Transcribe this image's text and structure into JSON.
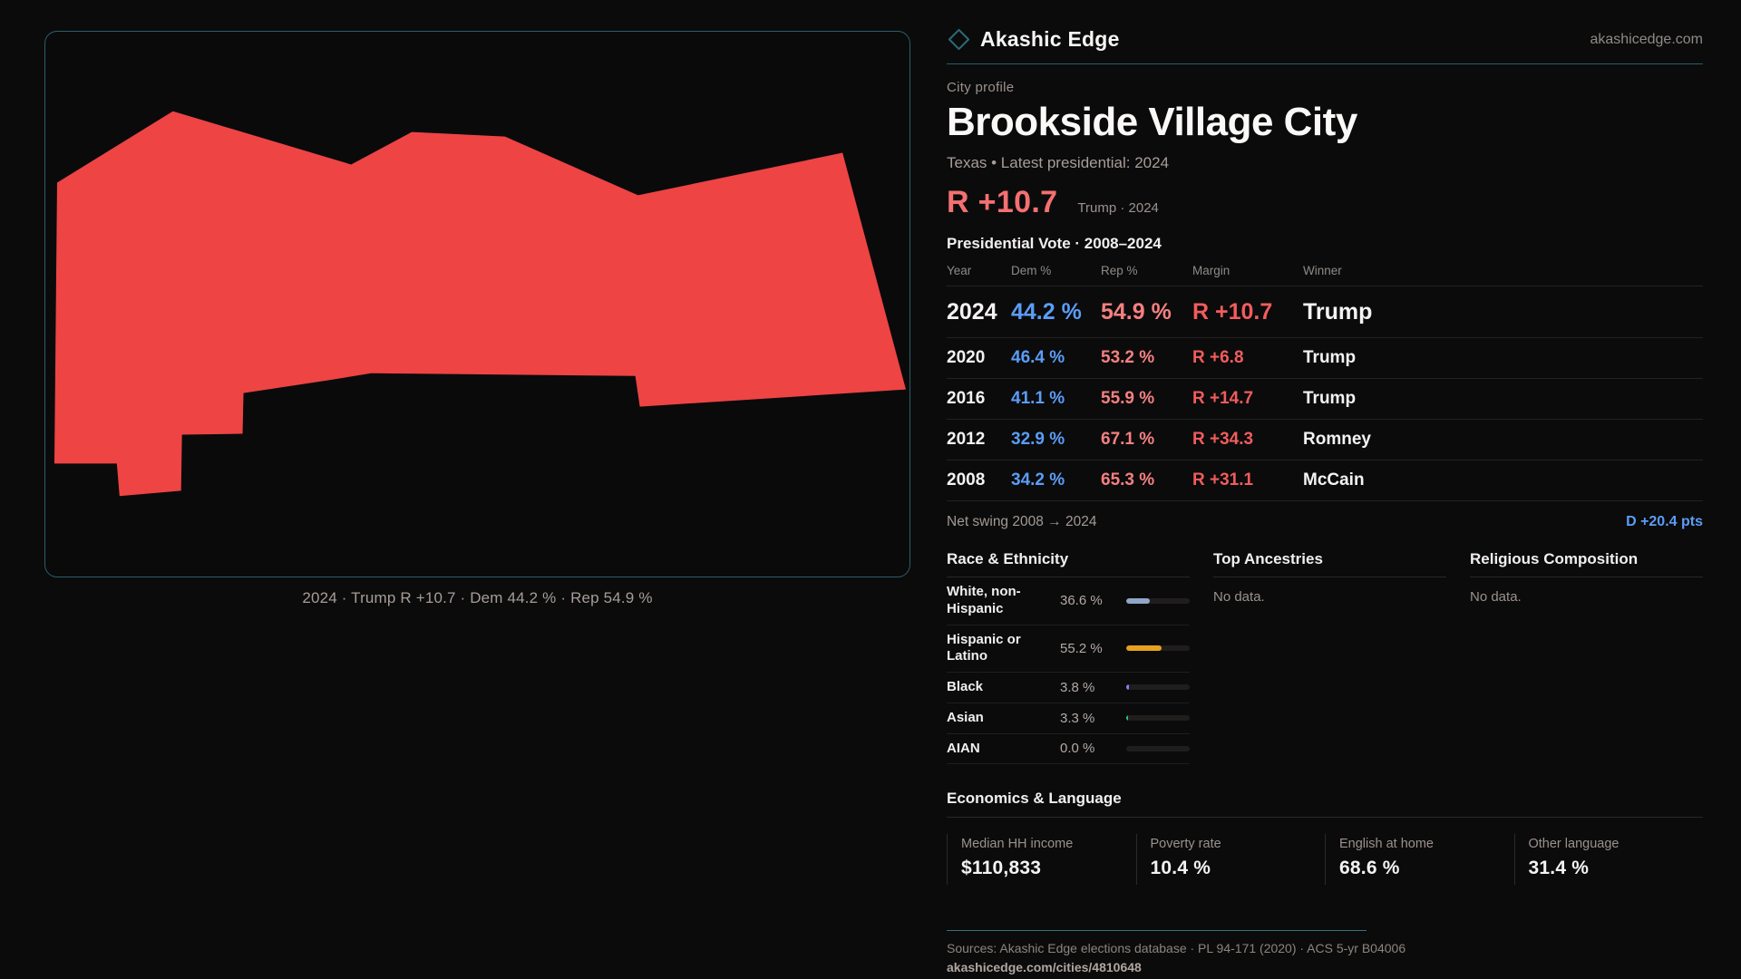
{
  "brand": {
    "name": "Akashic Edge",
    "domain": "akashicedge.com"
  },
  "profile": {
    "kicker": "City profile",
    "title": "Brookside Village City",
    "subtitle": "Texas • Latest presidential: 2024"
  },
  "hero": {
    "margin": "R +10.7",
    "note": "Trump · 2024"
  },
  "table": {
    "title": "Presidential Vote · 2008–2024",
    "headers": [
      "Year",
      "Dem %",
      "Rep %",
      "Margin",
      "Winner"
    ],
    "rows": [
      {
        "year": "2024",
        "dem": "44.2 %",
        "rep": "54.9 %",
        "margin": "R +10.7",
        "winner": "Trump"
      },
      {
        "year": "2020",
        "dem": "46.4 %",
        "rep": "53.2 %",
        "margin": "R +6.8",
        "winner": "Trump"
      },
      {
        "year": "2016",
        "dem": "41.1 %",
        "rep": "55.9 %",
        "margin": "R +14.7",
        "winner": "Trump"
      },
      {
        "year": "2012",
        "dem": "32.9 %",
        "rep": "67.1 %",
        "margin": "R +34.3",
        "winner": "Romney"
      },
      {
        "year": "2008",
        "dem": "34.2 %",
        "rep": "65.3 %",
        "margin": "R +31.1",
        "winner": "McCain"
      }
    ]
  },
  "net_swing": {
    "label": "Net swing 2008 → 2024",
    "value": "D +20.4 pts"
  },
  "race": {
    "title": "Race & Ethnicity",
    "rows": [
      {
        "label": "White, non-Hispanic",
        "value": "36.6 %",
        "pct": 36.6,
        "color": "#8fa7c7"
      },
      {
        "label": "Hispanic or Latino",
        "value": "55.2 %",
        "pct": 55.2,
        "color": "#e6a11f"
      },
      {
        "label": "Black",
        "value": "3.8 %",
        "pct": 3.8,
        "color": "#8b7cf8"
      },
      {
        "label": "Asian",
        "value": "3.3 %",
        "pct": 3.3,
        "color": "#31c585"
      },
      {
        "label": "AIAN",
        "value": "0.0 %",
        "pct": 0,
        "color": "#555555"
      }
    ]
  },
  "ancestries": {
    "title": "Top Ancestries",
    "empty": "No data."
  },
  "religion": {
    "title": "Religious Composition",
    "empty": "No data."
  },
  "economics": {
    "title": "Economics & Language",
    "stats": [
      {
        "label": "Median HH income",
        "value": "$110,833"
      },
      {
        "label": "Poverty rate",
        "value": "10.4 %"
      },
      {
        "label": "English at home",
        "value": "68.6 %"
      },
      {
        "label": "Other language",
        "value": "31.4 %"
      }
    ]
  },
  "map": {
    "caption": "2024 · Trump R +10.7 · Dem 44.2 % · Rep 54.9 %",
    "fill_color": "#ee4444",
    "accent_color": "#2b5f6a"
  },
  "footer": {
    "sources": "Sources: Akashic Edge elections database · PL 94-171 (2020) · ACS 5-yr B04006",
    "url": "akashicedge.com/cities/4810648"
  }
}
